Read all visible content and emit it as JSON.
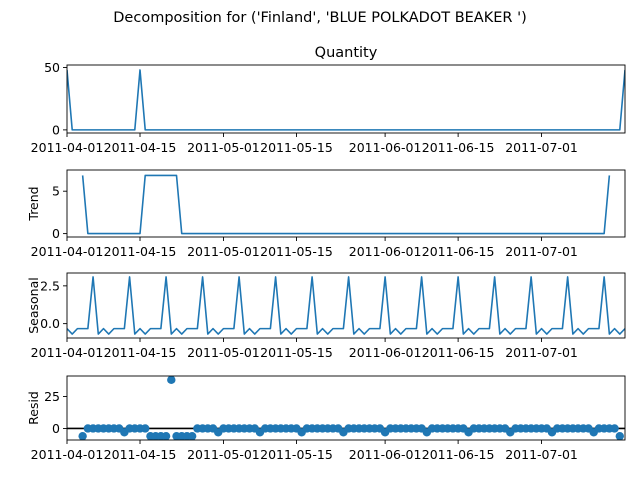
{
  "figure": {
    "suptitle": "Decomposition for ('Finland', 'BLUE POLKADOT BEAKER ')"
  },
  "chart_data": [
    {
      "type": "line",
      "title": "Quantity",
      "ylabel": "",
      "ylim": [
        -2.5,
        52
      ],
      "yticks": [
        0,
        50
      ],
      "grid": false,
      "x_start": "2011-04-01",
      "x_end": "2011-07-17",
      "x_dates": [
        "2011-04-01",
        "2011-04-02",
        "2011-04-03",
        "2011-04-04",
        "2011-04-05",
        "2011-04-06",
        "2011-04-07",
        "2011-04-08",
        "2011-04-09",
        "2011-04-10",
        "2011-04-11",
        "2011-04-12",
        "2011-04-13",
        "2011-04-14",
        "2011-04-15",
        "2011-04-16",
        "2011-04-17",
        "2011-04-18",
        "2011-04-19",
        "2011-04-20",
        "2011-04-21",
        "2011-04-22",
        "2011-04-23",
        "2011-04-24",
        "2011-04-25",
        "2011-04-26",
        "2011-04-27",
        "2011-04-28",
        "2011-04-29",
        "2011-04-30",
        "2011-05-01",
        "2011-05-02",
        "2011-05-03",
        "2011-05-04",
        "2011-05-05",
        "2011-05-06",
        "2011-05-07",
        "2011-05-08",
        "2011-05-09",
        "2011-05-10",
        "2011-05-11",
        "2011-05-12",
        "2011-05-13",
        "2011-05-14",
        "2011-05-15",
        "2011-05-16",
        "2011-05-17",
        "2011-05-18",
        "2011-05-19",
        "2011-05-20",
        "2011-05-21",
        "2011-05-22",
        "2011-05-23",
        "2011-05-24",
        "2011-05-25",
        "2011-05-26",
        "2011-05-27",
        "2011-05-28",
        "2011-05-29",
        "2011-05-30",
        "2011-05-31",
        "2011-06-01",
        "2011-06-02",
        "2011-06-03",
        "2011-06-04",
        "2011-06-05",
        "2011-06-06",
        "2011-06-07",
        "2011-06-08",
        "2011-06-09",
        "2011-06-10",
        "2011-06-11",
        "2011-06-12",
        "2011-06-13",
        "2011-06-14",
        "2011-06-15",
        "2011-06-16",
        "2011-06-17",
        "2011-06-18",
        "2011-06-19",
        "2011-06-20",
        "2011-06-21",
        "2011-06-22",
        "2011-06-23",
        "2011-06-24",
        "2011-06-25",
        "2011-06-26",
        "2011-06-27",
        "2011-06-28",
        "2011-06-29",
        "2011-06-30",
        "2011-07-01",
        "2011-07-02",
        "2011-07-03",
        "2011-07-04",
        "2011-07-05",
        "2011-07-06",
        "2011-07-07",
        "2011-07-08",
        "2011-07-09",
        "2011-07-10",
        "2011-07-11",
        "2011-07-12",
        "2011-07-13",
        "2011-07-14",
        "2011-07-15",
        "2011-07-16",
        "2011-07-17"
      ],
      "values": [
        48,
        0,
        0,
        0,
        0,
        0,
        0,
        0,
        0,
        0,
        0,
        0,
        0,
        0,
        48,
        0,
        0,
        0,
        0,
        0,
        0,
        0,
        0,
        0,
        0,
        0,
        0,
        0,
        0,
        0,
        0,
        0,
        0,
        0,
        0,
        0,
        0,
        0,
        0,
        0,
        0,
        0,
        0,
        0,
        0,
        0,
        0,
        0,
        0,
        0,
        0,
        0,
        0,
        0,
        0,
        0,
        0,
        0,
        0,
        0,
        0,
        0,
        0,
        0,
        0,
        0,
        0,
        0,
        0,
        0,
        0,
        0,
        0,
        0,
        0,
        0,
        0,
        0,
        0,
        0,
        0,
        0,
        0,
        0,
        0,
        0,
        0,
        0,
        0,
        0,
        0,
        0,
        0,
        0,
        0,
        0,
        0,
        0,
        0,
        0,
        0,
        0,
        0,
        0,
        0,
        0,
        0,
        48
      ]
    },
    {
      "type": "line",
      "title": "",
      "ylabel": "Trend",
      "ylim": [
        -0.4,
        7.5
      ],
      "yticks": [
        0,
        5
      ],
      "grid": false,
      "x_start": "2011-04-04",
      "x_end": "2011-07-14",
      "values": [
        6.86,
        0,
        0,
        0,
        0,
        0,
        0,
        0,
        0,
        0,
        0,
        0,
        6.86,
        6.86,
        6.86,
        6.86,
        6.86,
        6.86,
        6.86,
        0,
        0,
        0,
        0,
        0,
        0,
        0,
        0,
        0,
        0,
        0,
        0,
        0,
        0,
        0,
        0,
        0,
        0,
        0,
        0,
        0,
        0,
        0,
        0,
        0,
        0,
        0,
        0,
        0,
        0,
        0,
        0,
        0,
        0,
        0,
        0,
        0,
        0,
        0,
        0,
        0,
        0,
        0,
        0,
        0,
        0,
        0,
        0,
        0,
        0,
        0,
        0,
        0,
        0,
        0,
        0,
        0,
        0,
        0,
        0,
        0,
        0,
        0,
        0,
        0,
        0,
        0,
        0,
        0,
        0,
        0,
        0,
        0,
        0,
        0,
        0,
        0,
        0,
        0,
        0,
        0,
        0,
        6.86
      ]
    },
    {
      "type": "line",
      "title": "",
      "ylabel": "Seasonal",
      "ylim": [
        -0.95,
        3.35
      ],
      "yticks": [
        0.0,
        2.5
      ],
      "ytick_labels": [
        "0.0",
        "2.5"
      ],
      "grid": false,
      "x_start": "2011-04-01",
      "x_end": "2011-07-17",
      "period": 7,
      "pattern_start_offset": 1,
      "pattern": [
        -0.69,
        -0.33,
        -0.69,
        -0.33,
        -0.33,
        -0.33,
        3.09
      ],
      "note_pattern": ""
    },
    {
      "type": "scatter",
      "title": "",
      "ylabel": "Resid",
      "ylim": [
        -9,
        41
      ],
      "yticks": [
        0,
        25
      ],
      "baseline": 0,
      "grid": false,
      "x_start": "2011-04-04",
      "x_end": "2011-07-14",
      "values": [
        -6,
        0,
        0,
        0,
        0,
        0,
        0,
        0,
        -3,
        0,
        0,
        0,
        0,
        -6,
        -6,
        -6,
        -6,
        38,
        -6,
        -6,
        -6,
        -6,
        0,
        0,
        0,
        0,
        -3,
        0,
        0,
        0,
        0,
        0,
        0,
        0,
        -3,
        0,
        0,
        0,
        0,
        0,
        0,
        0,
        -3,
        0,
        0,
        0,
        0,
        0,
        0,
        0,
        -3,
        0,
        0,
        0,
        0,
        0,
        0,
        0,
        -3,
        0,
        0,
        0,
        0,
        0,
        0,
        0,
        -3,
        0,
        0,
        0,
        0,
        0,
        0,
        0,
        -3,
        0,
        0,
        0,
        0,
        0,
        0,
        0,
        -3,
        0,
        0,
        0,
        0,
        0,
        0,
        0,
        -3,
        0,
        0,
        0,
        0,
        0,
        0,
        0,
        -3,
        0,
        0,
        0,
        0,
        -6
      ]
    }
  ],
  "x_axis": {
    "tick_labels": [
      "2011-04-01",
      "2011-04-15",
      "2011-05-01",
      "2011-05-15",
      "2011-06-01",
      "2011-06-15",
      "2011-07-01"
    ],
    "tick_dates": [
      "2011-04-01",
      "2011-04-15",
      "2011-05-01",
      "2011-05-15",
      "2011-06-01",
      "2011-06-15",
      "2011-07-01"
    ]
  },
  "colors": {
    "line": "#1f77b4",
    "axis": "#000000",
    "baseline": "#000000"
  }
}
